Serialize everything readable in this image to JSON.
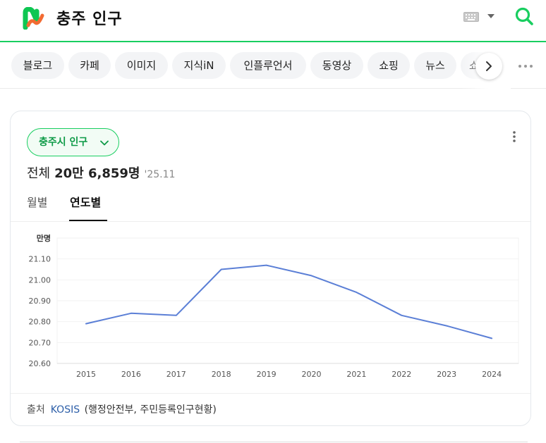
{
  "header": {
    "query": "충주 인구",
    "icons": {
      "logo": "naver-logo-icon",
      "keyboard": "keyboard-icon",
      "dropdown": "caret-down-icon",
      "search": "search-icon"
    },
    "colors": {
      "accent": "#19ce60",
      "logo_green": "#0ec652",
      "logo_orange": "#f26b32"
    }
  },
  "tabs": {
    "items": [
      {
        "label": "블로그"
      },
      {
        "label": "카페"
      },
      {
        "label": "이미지"
      },
      {
        "label": "지식iN"
      },
      {
        "label": "인플루언서"
      },
      {
        "label": "동영상"
      },
      {
        "label": "쇼핑"
      },
      {
        "label": "뉴스"
      },
      {
        "label": "쇼"
      }
    ],
    "next_icon": "chevron-right-icon",
    "more_icon": "more-horizontal-icon"
  },
  "card": {
    "region_chip": "충주시 인구",
    "total_label": "전체",
    "total_value": "20만 6,859명",
    "total_date": "'25.11",
    "subtabs": [
      {
        "label": "월별",
        "active": false
      },
      {
        "label": "연도별",
        "active": true
      }
    ],
    "source_label": "출처",
    "source_org": "KOSIS",
    "source_desc": "(행정안전부, 주민등록인구현황)"
  },
  "chart_data": {
    "type": "line",
    "unit_label": "만명",
    "x": [
      "2015",
      "2016",
      "2017",
      "2018",
      "2019",
      "2020",
      "2021",
      "2022",
      "2023",
      "2024"
    ],
    "series": [
      {
        "values": [
          20.79,
          20.84,
          20.83,
          21.05,
          21.07,
          21.02,
          20.94,
          20.83,
          20.78,
          20.72
        ]
      }
    ],
    "y_ticks": [
      "20.60",
      "20.70",
      "20.80",
      "20.90",
      "21.00",
      "21.10"
    ],
    "ylim": [
      20.6,
      21.1
    ],
    "grid": true,
    "line_color": "#5b7fd6"
  }
}
